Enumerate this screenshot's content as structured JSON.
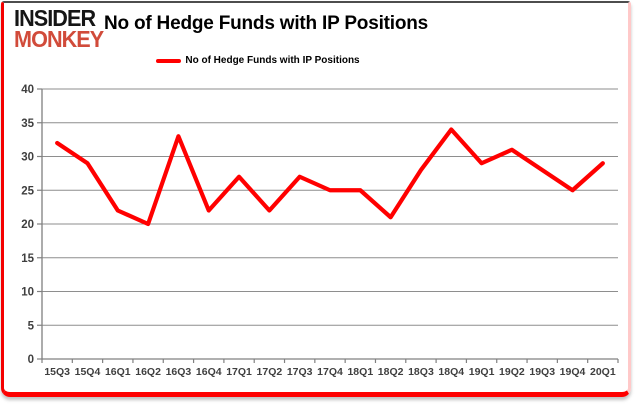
{
  "logo": {
    "line1": "INSIDER",
    "line2": "MONKEY",
    "accent_color": "#d14b3a",
    "text_color": "#151515"
  },
  "header": {
    "title": "No of Hedge Funds with IP Positions"
  },
  "legend": {
    "label": "No of Hedge Funds with IP Positions",
    "swatch_color": "#ff0000"
  },
  "colors": {
    "line": "#ff0000",
    "grid": "#8e8e8e",
    "axis": "#808080",
    "tick_label": "#3f3f3f",
    "frame_bottom": "#fe0000",
    "frame_left": "#f40000",
    "frame_right": "#ffc9c9",
    "frame_top": "#4d4d4d"
  },
  "chart_data": {
    "type": "line",
    "title": "No of Hedge Funds with IP Positions",
    "series": [
      {
        "name": "No of Hedge Funds with IP Positions",
        "color": "#ff0000",
        "values": [
          32,
          29,
          22,
          20,
          33,
          22,
          27,
          22,
          27,
          25,
          25,
          21,
          28,
          34,
          29,
          31,
          28,
          25,
          29
        ]
      }
    ],
    "categories": [
      "15Q3",
      "15Q4",
      "16Q1",
      "16Q2",
      "16Q3",
      "16Q4",
      "17Q1",
      "17Q2",
      "17Q3",
      "17Q4",
      "18Q1",
      "18Q2",
      "18Q3",
      "18Q4",
      "19Q1",
      "19Q2",
      "19Q3",
      "19Q4",
      "20Q1"
    ],
    "xlabel": "",
    "ylabel": "",
    "ylim": [
      0,
      40
    ],
    "ytick_step": 5,
    "yticks": [
      0,
      5,
      10,
      15,
      20,
      25,
      30,
      35,
      40
    ],
    "grid": true,
    "legend_position": "top-center"
  }
}
